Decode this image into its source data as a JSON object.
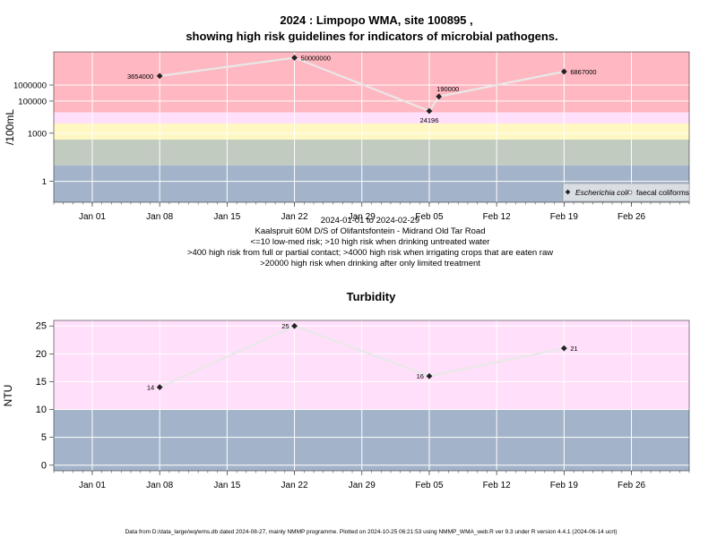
{
  "title_line1": "2024 : Limpopo WMA, site 100895 ,",
  "title_line2": "showing high risk guidelines for indicators of microbial pathogens.",
  "subtitle_lines": [
    "2024-01-01 to 2024-02-29",
    "Kaalspruit 60M D/S of Olifantsfontein - Midrand Old Tar Road",
    "<=10 low-med risk; >10 high risk when drinking untreated water",
    ">400 high risk from full or partial contact; >4000 high risk when irrigating crops that are eaten raw",
    ">20000 high risk when drinking after only limited treatment"
  ],
  "footer": "Data from D:/data_large/wq/wms.db dated 2024-08-27, mainly NMMP programme. Plotted on 2024-10-25 06:21:53 using NMMP_WMA_web.R ver 9.3 under R version 4.4.1 (2024-06-14 ucrt)",
  "colors": {
    "band_low": "#a3b3c9",
    "band_medium_low": "#c1cbc0",
    "band_yellow": "#fff8c2",
    "band_pink": "#ffdff9",
    "band_red": "#ffb7c1",
    "line": "#e8e8e8",
    "point": "#222222",
    "grid": "#ffffff"
  },
  "chart_data": [
    {
      "type": "line",
      "ylabel": "/100mL",
      "yscale": "log",
      "yticks": [
        "1",
        "1000",
        "100000",
        "1000000"
      ],
      "xticks": [
        "Jan 01",
        "Jan 08",
        "Jan 15",
        "Jan 22",
        "Jan 29",
        "Feb 05",
        "Feb 12",
        "Feb 19",
        "Feb 26"
      ],
      "xlim": [
        "2023-12-28",
        "2024-03-03"
      ],
      "legend_position": "bottom-right",
      "legend": [
        "Escherichia coli",
        "faecal coliforms"
      ],
      "thresholds": [
        10,
        400,
        4000,
        20000
      ],
      "series": [
        {
          "name": "Escherichia coli",
          "x": [
            "2024-01-08",
            "2024-01-22",
            "2024-02-05",
            "2024-02-06",
            "2024-02-19"
          ],
          "y": [
            3654000,
            50000000,
            24196,
            190000,
            6867000
          ],
          "labels": [
            "3654000",
            "50000000",
            "24196",
            "190000",
            "6867000"
          ]
        }
      ]
    },
    {
      "type": "line",
      "title": "Turbidity",
      "ylabel": "NTU",
      "ylim": [
        -1,
        26
      ],
      "yticks": [
        "0",
        "5",
        "10",
        "15",
        "20",
        "25"
      ],
      "xticks": [
        "Jan 01",
        "Jan 08",
        "Jan 15",
        "Jan 22",
        "Jan 29",
        "Feb 05",
        "Feb 12",
        "Feb 19",
        "Feb 26"
      ],
      "xlim": [
        "2023-12-28",
        "2024-03-03"
      ],
      "thresholds": [
        10
      ],
      "series": [
        {
          "x": [
            "2024-01-08",
            "2024-01-22",
            "2024-02-05",
            "2024-02-19"
          ],
          "y": [
            14,
            25,
            16,
            21
          ],
          "labels": [
            "14",
            "25",
            "16",
            "21"
          ]
        }
      ]
    }
  ]
}
